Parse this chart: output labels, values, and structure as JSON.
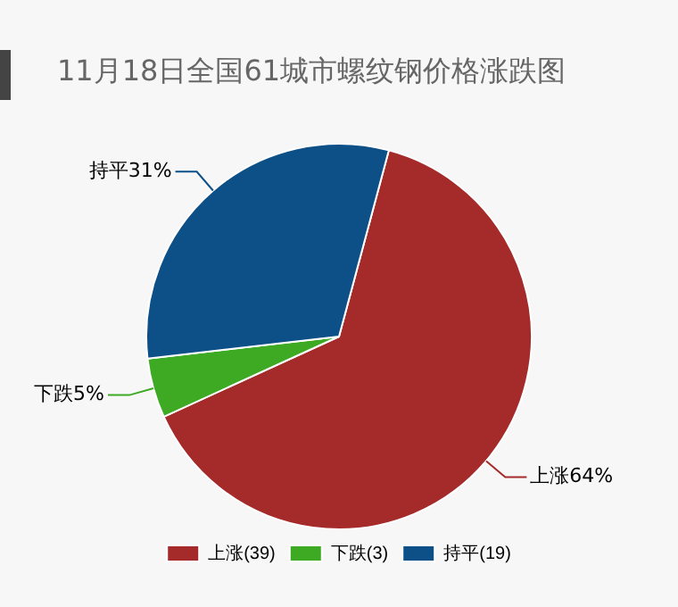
{
  "chart_data": {
    "type": "pie",
    "title": "11月18日全国61城市螺纹钢价格涨跌图",
    "categories": [
      "上涨(39)",
      "下跌(3)",
      "持平(19)"
    ],
    "values": [
      64,
      5,
      31
    ],
    "colors": [
      "#a52a2a",
      "#3eaa24",
      "#0d5088"
    ],
    "value_labels": [
      "上涨64%",
      "下跌5%",
      "持平31%"
    ],
    "legend": "bottom"
  }
}
